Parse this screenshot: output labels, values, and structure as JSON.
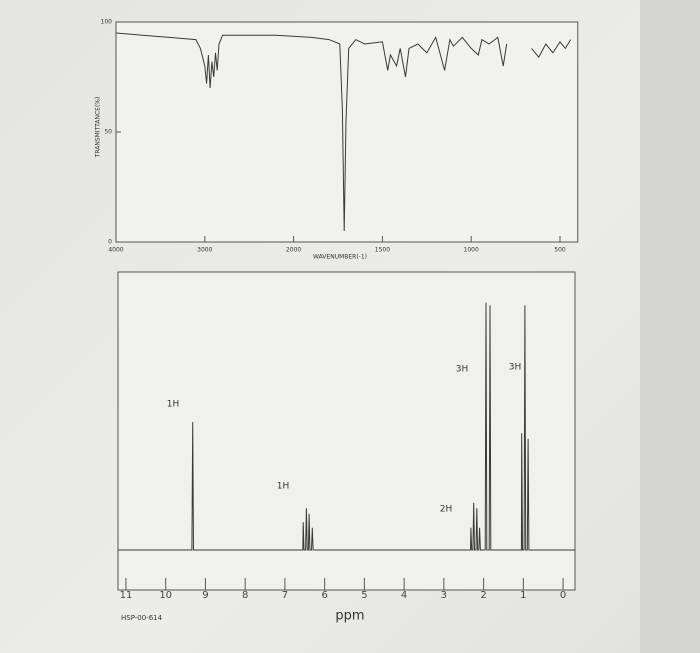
{
  "chart_data": [
    {
      "type": "line",
      "y_label": "TRANSMITTANCE(%)",
      "x_label": "WAVENUMBER(-1)",
      "color": "#3a3a3a",
      "xlim": [
        4000,
        400
      ],
      "xticks": [
        4000,
        3000,
        2000,
        1500,
        1000,
        500
      ],
      "ylim": [
        0,
        100
      ],
      "yticks": [
        0,
        50,
        100
      ],
      "x": [
        4000,
        3700,
        3400,
        3100,
        3050,
        3000,
        2980,
        2960,
        2940,
        2920,
        2900,
        2880,
        2860,
        2840,
        2800,
        2500,
        2200,
        1900,
        1800,
        1740,
        1725,
        1715,
        1705,
        1690,
        1650,
        1600,
        1500,
        1470,
        1455,
        1420,
        1400,
        1370,
        1350,
        1300,
        1250,
        1200,
        1150,
        1120,
        1100,
        1050,
        1000,
        960,
        940,
        900,
        850,
        820,
        800,
        730,
        660,
        620,
        580,
        540,
        500,
        470,
        440
      ],
      "values": [
        95,
        94,
        93,
        92,
        88,
        80,
        72,
        85,
        70,
        82,
        75,
        86,
        78,
        90,
        94,
        94,
        94,
        93,
        92,
        90,
        60,
        5,
        55,
        88,
        92,
        90,
        91,
        78,
        85,
        80,
        88,
        75,
        88,
        90,
        86,
        93,
        78,
        92,
        89,
        93,
        88,
        85,
        92,
        90,
        93,
        80,
        90,
        null,
        88,
        84,
        90,
        86,
        91,
        88,
        92
      ]
    },
    {
      "type": "line",
      "x_label": "ppm",
      "footnote": "HSP-00-614",
      "color": "#3a3a3a",
      "annotations": [
        "1H",
        "1H",
        "2H",
        "3H",
        "3H"
      ],
      "xlim": [
        11.2,
        -0.3
      ],
      "xticks": [
        11,
        10,
        9,
        8,
        7,
        6,
        5,
        4,
        3,
        2,
        1,
        0
      ],
      "ylim": [
        0,
        100
      ],
      "x": [
        11.2,
        9.4,
        9.34,
        9.32,
        9.3,
        9.25,
        6.6,
        6.55,
        6.54,
        6.52,
        6.48,
        6.46,
        6.44,
        6.41,
        6.39,
        6.37,
        6.33,
        6.31,
        6.29,
        6.25,
        2.4,
        2.33,
        2.32,
        2.3,
        2.27,
        2.25,
        2.23,
        2.19,
        2.17,
        2.15,
        2.12,
        2.1,
        2.08,
        1.96,
        1.94,
        1.92,
        1.86,
        1.84,
        1.82,
        1.1,
        1.05,
        1.04,
        1.02,
        0.98,
        0.96,
        0.94,
        0.9,
        0.88,
        0.86,
        0.8,
        -0.3
      ],
      "values": [
        0,
        0,
        0,
        46,
        0,
        0,
        0,
        0,
        10,
        0,
        0,
        15,
        0,
        0,
        13,
        0,
        0,
        8,
        0,
        0,
        0,
        0,
        8,
        0,
        0,
        17,
        0,
        0,
        15,
        0,
        0,
        8,
        0,
        0,
        89,
        0,
        0,
        88,
        0,
        0,
        0,
        42,
        0,
        0,
        88,
        0,
        0,
        40,
        0,
        0,
        0
      ]
    }
  ]
}
